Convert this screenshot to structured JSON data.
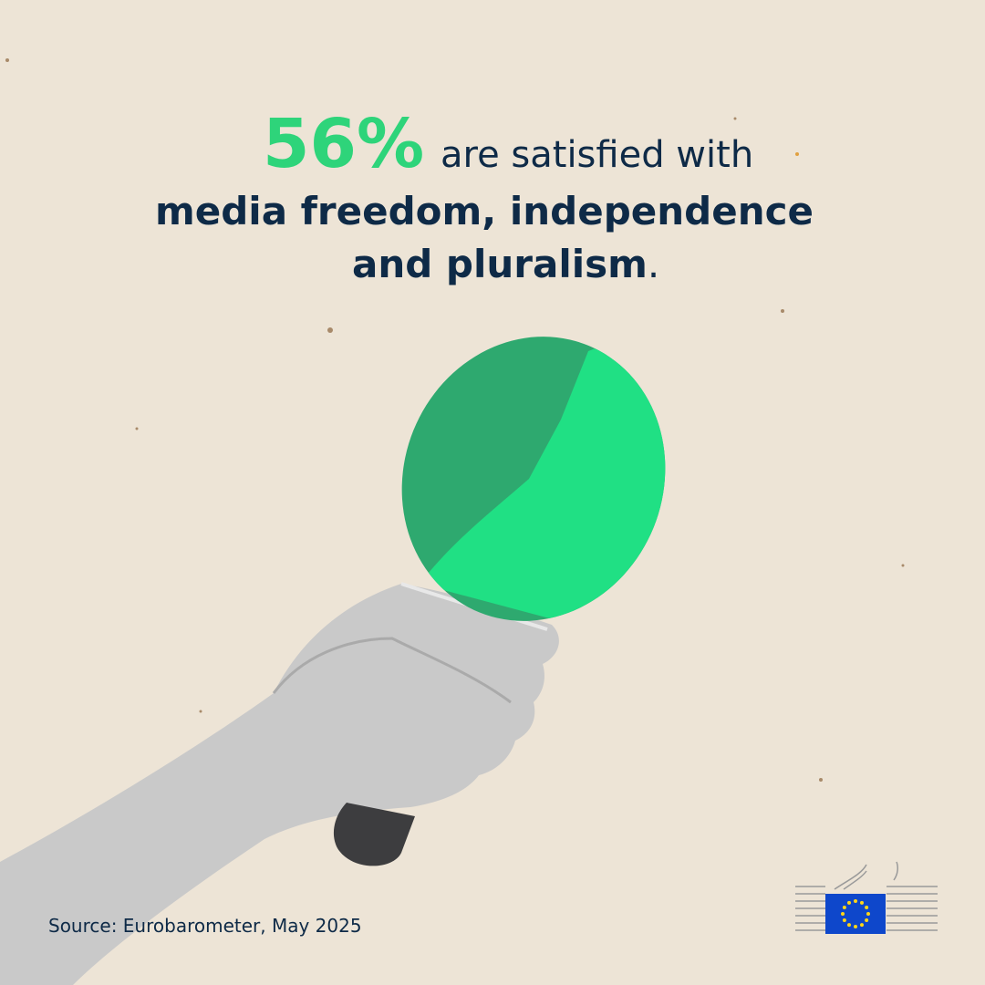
{
  "headline": {
    "stat": "56%",
    "line1_rest": "are satisfied with",
    "line2": "media freedom, independence",
    "line3": "and pluralism",
    "line3_end": "."
  },
  "source": "Source: Eurobarometer, May 2025"
}
